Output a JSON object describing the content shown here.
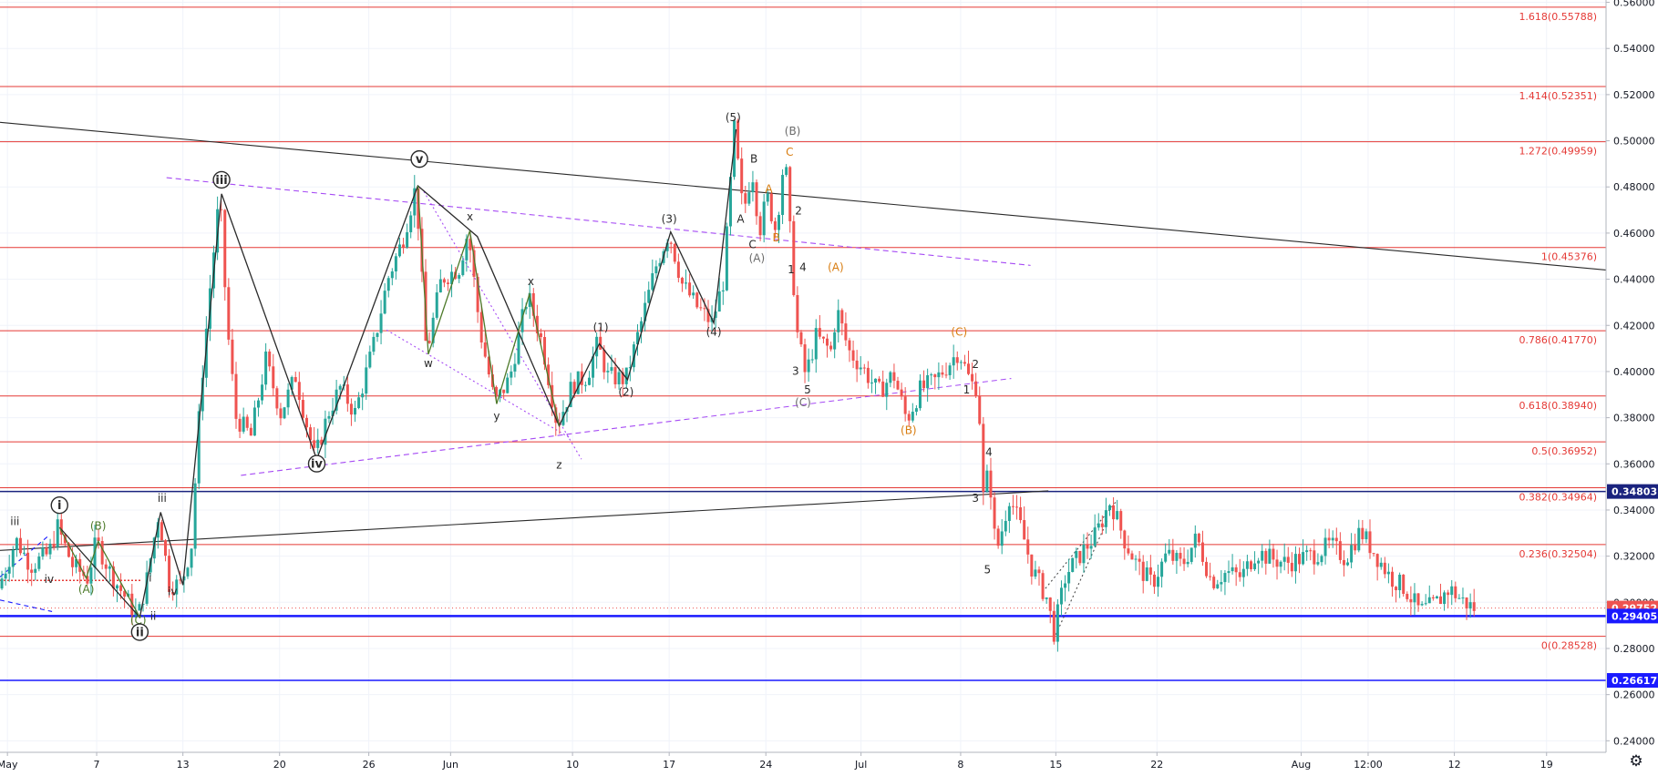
{
  "chart_data": {
    "type": "candlestick",
    "ylim": [
      0.235,
      0.561
    ],
    "xlim": [
      0,
      108
    ],
    "grid": true,
    "colors": {
      "up": "#26a69a",
      "down": "#ef5350",
      "fib_line": "#e53935",
      "blue_line": "#1a1aff",
      "navy_line": "#1a237e",
      "trend_line": "#2a2a2a",
      "channel": "#a64bf4",
      "wave_orange": "#d87c0f",
      "wave_gray": "#6b6b6b",
      "wave_green": "#4d7a2a",
      "last_price": "#ef5350"
    },
    "y_ticks": [
      {
        "value": 0.24,
        "label": "0.24000"
      },
      {
        "value": 0.26,
        "label": "0.26000"
      },
      {
        "value": 0.28,
        "label": "0.28000"
      },
      {
        "value": 0.3,
        "label": "0.30000"
      },
      {
        "value": 0.32,
        "label": "0.32000"
      },
      {
        "value": 0.34,
        "label": "0.34000"
      },
      {
        "value": 0.36,
        "label": "0.36000"
      },
      {
        "value": 0.38,
        "label": "0.38000"
      },
      {
        "value": 0.4,
        "label": "0.40000"
      },
      {
        "value": 0.42,
        "label": "0.42000"
      },
      {
        "value": 0.44,
        "label": "0.44000"
      },
      {
        "value": 0.46,
        "label": "0.46000"
      },
      {
        "value": 0.48,
        "label": "0.48000"
      },
      {
        "value": 0.5,
        "label": "0.50000"
      },
      {
        "value": 0.52,
        "label": "0.52000"
      },
      {
        "value": 0.54,
        "label": "0.54000"
      },
      {
        "value": 0.56,
        "label": "0.56000"
      }
    ],
    "x_ticks": [
      {
        "t": 0.5,
        "label": "May"
      },
      {
        "t": 6.5,
        "label": "7"
      },
      {
        "t": 12.3,
        "label": "13"
      },
      {
        "t": 18.8,
        "label": "20"
      },
      {
        "t": 24.8,
        "label": "26"
      },
      {
        "t": 30.3,
        "label": "Jun"
      },
      {
        "t": 38.5,
        "label": "10"
      },
      {
        "t": 45.0,
        "label": "17"
      },
      {
        "t": 51.5,
        "label": "24"
      },
      {
        "t": 57.9,
        "label": "Jul"
      },
      {
        "t": 64.6,
        "label": "8"
      },
      {
        "t": 71.0,
        "label": "15"
      },
      {
        "t": 77.8,
        "label": "22"
      },
      {
        "t": 87.5,
        "label": "Aug"
      },
      {
        "t": 92.0,
        "label": "12:00"
      },
      {
        "t": 97.8,
        "label": "12"
      },
      {
        "t": 104.0,
        "label": "19"
      }
    ],
    "fib_levels": [
      {
        "ratio": "1.618",
        "price": 0.55788,
        "label": "1.618(0.55788)"
      },
      {
        "ratio": "1.414",
        "price": 0.52351,
        "label": "1.414(0.52351)"
      },
      {
        "ratio": "1.272",
        "price": 0.49959,
        "label": "1.272(0.49959)"
      },
      {
        "ratio": "1",
        "price": 0.45376,
        "label": "1(0.45376)"
      },
      {
        "ratio": "0.786",
        "price": 0.4177,
        "label": "0.786(0.41770)"
      },
      {
        "ratio": "0.618",
        "price": 0.3894,
        "label": "0.618(0.38940)"
      },
      {
        "ratio": "0.5",
        "price": 0.36952,
        "label": "0.5(0.36952)"
      },
      {
        "ratio": "0.382",
        "price": 0.34964,
        "label": "0.382(0.34964)"
      },
      {
        "ratio": "0.236",
        "price": 0.32504,
        "label": "0.236(0.32504)"
      },
      {
        "ratio": "0",
        "price": 0.28528,
        "label": "0(0.28528)"
      }
    ],
    "price_badges": [
      {
        "price": 0.34803,
        "label": "0.34803",
        "color": "#1a237e"
      },
      {
        "price": 0.29752,
        "label": "0.29752",
        "color": "#ef5350"
      },
      {
        "price": 0.29405,
        "label": "0.29405",
        "color": "#1a1aff"
      },
      {
        "price": 0.26617,
        "label": "0.26617",
        "color": "#1a1aff"
      }
    ],
    "horizontal_lines": [
      {
        "price": 0.34803,
        "color": "#1a237e",
        "width": 1.5
      },
      {
        "price": 0.29405,
        "color": "#1a1aff",
        "width": 2.5
      },
      {
        "price": 0.26617,
        "color": "#1a1aff",
        "width": 1.5
      }
    ],
    "trend_lines": [
      {
        "t1": 0,
        "p1": 0.508,
        "t2": 108,
        "p2": 0.444,
        "color": "#2a2a2a",
        "dash": ""
      },
      {
        "t1": 0,
        "p1": 0.3225,
        "t2": 70.5,
        "p2": 0.3483,
        "color": "#2a2a2a",
        "dash": ""
      },
      {
        "t1": 11.2,
        "p1": 0.484,
        "t2": 69.3,
        "p2": 0.446,
        "color": "#a64bf4",
        "dash": "6,4"
      },
      {
        "t1": 16.2,
        "p1": 0.355,
        "t2": 68.0,
        "p2": 0.397,
        "color": "#a64bf4",
        "dash": "6,4"
      },
      {
        "t1": 28.5,
        "p1": 0.478,
        "t2": 39.1,
        "p2": 0.362,
        "color": "#a64bf4",
        "dash": "2,3"
      },
      {
        "t1": 26.0,
        "p1": 0.418,
        "t2": 38.4,
        "p2": 0.371,
        "color": "#a64bf4",
        "dash": "2,3"
      },
      {
        "t1": 71.0,
        "p1": 0.286,
        "t2": 74.5,
        "p2": 0.336,
        "color": "#4a4a4a",
        "dash": "2,3"
      },
      {
        "t1": 70.3,
        "p1": 0.306,
        "t2": 75.1,
        "p2": 0.344,
        "color": "#4a4a4a",
        "dash": "2,3"
      },
      {
        "t1": 0,
        "p1": 0.301,
        "t2": 3.5,
        "p2": 0.296,
        "color": "#1a1aff",
        "dash": "5,4"
      },
      {
        "t1": 0,
        "p1": 0.311,
        "t2": 3.2,
        "p2": 0.3285,
        "color": "#1a1aff",
        "dash": "5,4"
      }
    ],
    "red_dotted_line": {
      "t1": 0,
      "t2": 9.5,
      "p": 0.3095
    },
    "wave_paths": [
      {
        "color": "#2a2a2a",
        "points": [
          [
            4,
            0.3325
          ],
          [
            9.4,
            0.2935
          ],
          [
            10.8,
            0.339
          ],
          [
            12.3,
            0.3075
          ],
          [
            14.9,
            0.477
          ],
          [
            21.3,
            0.362
          ],
          [
            28.1,
            0.4805
          ],
          [
            32.1,
            0.4585
          ],
          [
            37.6,
            0.3765
          ],
          [
            40.3,
            0.412
          ],
          [
            42.2,
            0.3965
          ],
          [
            45.1,
            0.4605
          ],
          [
            48.0,
            0.421
          ],
          [
            49.5,
            0.505
          ]
        ]
      },
      {
        "color": "#4d7a2a",
        "points": [
          [
            4,
            0.3325
          ],
          [
            5.8,
            0.3105
          ],
          [
            6.6,
            0.3265
          ],
          [
            9.4,
            0.2935
          ]
        ]
      },
      {
        "color": "#4d7a2a",
        "points": [
          [
            28.1,
            0.4805
          ],
          [
            28.8,
            0.4075
          ],
          [
            31.6,
            0.461
          ],
          [
            33.4,
            0.386
          ],
          [
            35.6,
            0.4335
          ],
          [
            37.6,
            0.3765
          ]
        ]
      }
    ],
    "wave_labels": [
      {
        "t": 1.0,
        "p": 0.3335,
        "text": "iii",
        "color": "#2a2a2a",
        "circled": false
      },
      {
        "t": 4.0,
        "p": 0.3405,
        "text": "i",
        "color": "#2a2a2a",
        "circled": true
      },
      {
        "t": 3.3,
        "p": 0.3085,
        "text": "iv",
        "color": "#2a2a2a",
        "circled": false
      },
      {
        "t": 6.6,
        "p": 0.3315,
        "text": "(B)",
        "color": "#4d7a2a",
        "circled": false
      },
      {
        "t": 5.8,
        "p": 0.304,
        "text": "(A)",
        "color": "#4d7a2a",
        "circled": false
      },
      {
        "t": 9.3,
        "p": 0.2907,
        "text": "(C)",
        "color": "#4d7a2a",
        "circled": false
      },
      {
        "t": 9.4,
        "p": 0.2855,
        "text": "ii",
        "color": "#2a2a2a",
        "circled": true
      },
      {
        "t": 10.1,
        "p": 0.309,
        "text": "i",
        "color": "#2a2a2a",
        "circled": false
      },
      {
        "t": 10.3,
        "p": 0.2925,
        "text": "ii",
        "color": "#2a2a2a",
        "circled": false
      },
      {
        "t": 10.9,
        "p": 0.3435,
        "text": "iii",
        "color": "#2a2a2a",
        "circled": false
      },
      {
        "t": 11.6,
        "p": 0.303,
        "text": "iv",
        "color": "#2a2a2a",
        "circled": false
      },
      {
        "t": 14.9,
        "p": 0.4815,
        "text": "iii",
        "color": "#2a2a2a",
        "circled": true
      },
      {
        "t": 21.3,
        "p": 0.3585,
        "text": "iv",
        "color": "#2a2a2a",
        "circled": true
      },
      {
        "t": 28.2,
        "p": 0.4905,
        "text": "v",
        "color": "#2a2a2a",
        "circled": true
      },
      {
        "t": 28.8,
        "p": 0.402,
        "text": "w",
        "color": "#2a2a2a",
        "circled": false
      },
      {
        "t": 31.6,
        "p": 0.4655,
        "text": "x",
        "color": "#2a2a2a",
        "circled": false
      },
      {
        "t": 33.4,
        "p": 0.379,
        "text": "y",
        "color": "#2a2a2a",
        "circled": false
      },
      {
        "t": 35.7,
        "p": 0.4375,
        "text": "x",
        "color": "#2a2a2a",
        "circled": false
      },
      {
        "t": 37.6,
        "p": 0.358,
        "text": "z",
        "color": "#2a2a2a",
        "circled": false
      },
      {
        "t": 40.4,
        "p": 0.4175,
        "text": "(1)",
        "color": "#2a2a2a",
        "circled": false
      },
      {
        "t": 42.1,
        "p": 0.3895,
        "text": "(2)",
        "color": "#2a2a2a",
        "circled": false
      },
      {
        "t": 45.0,
        "p": 0.4645,
        "text": "(3)",
        "color": "#2a2a2a",
        "circled": false
      },
      {
        "t": 48.0,
        "p": 0.4155,
        "text": "(4)",
        "color": "#2a2a2a",
        "circled": false
      },
      {
        "t": 49.3,
        "p": 0.5085,
        "text": "(5)",
        "color": "#2a2a2a",
        "circled": false
      },
      {
        "t": 49.8,
        "p": 0.4645,
        "text": "A",
        "color": "#2a2a2a",
        "circled": false
      },
      {
        "t": 50.7,
        "p": 0.4905,
        "text": "B",
        "color": "#2a2a2a",
        "circled": false
      },
      {
        "t": 50.6,
        "p": 0.4535,
        "text": "C",
        "color": "#2a2a2a",
        "circled": false
      },
      {
        "t": 50.9,
        "p": 0.4475,
        "text": "(A)",
        "color": "#6b6b6b",
        "circled": false
      },
      {
        "t": 51.7,
        "p": 0.4775,
        "text": "A",
        "color": "#d87c0f",
        "circled": false
      },
      {
        "t": 52.2,
        "p": 0.4565,
        "text": "B",
        "color": "#d87c0f",
        "circled": false
      },
      {
        "t": 53.1,
        "p": 0.4935,
        "text": "C",
        "color": "#d87c0f",
        "circled": false
      },
      {
        "t": 53.3,
        "p": 0.5025,
        "text": "(B)",
        "color": "#6b6b6b",
        "circled": false
      },
      {
        "t": 53.7,
        "p": 0.468,
        "text": "2",
        "color": "#2a2a2a",
        "circled": false
      },
      {
        "t": 53.2,
        "p": 0.4425,
        "text": "1",
        "color": "#2a2a2a",
        "circled": false
      },
      {
        "t": 54.0,
        "p": 0.4435,
        "text": "4",
        "color": "#2a2a2a",
        "circled": false
      },
      {
        "t": 56.2,
        "p": 0.4435,
        "text": "(A)",
        "color": "#d87c0f",
        "circled": false
      },
      {
        "t": 53.5,
        "p": 0.3985,
        "text": "3",
        "color": "#2a2a2a",
        "circled": false
      },
      {
        "t": 54.3,
        "p": 0.3905,
        "text": "5",
        "color": "#2a2a2a",
        "circled": false
      },
      {
        "t": 54.0,
        "p": 0.385,
        "text": "(C)",
        "color": "#6b6b6b",
        "circled": false
      },
      {
        "t": 61.1,
        "p": 0.373,
        "text": "(B)",
        "color": "#d87c0f",
        "circled": false
      },
      {
        "t": 64.5,
        "p": 0.4155,
        "text": "(C)",
        "color": "#d87c0f",
        "circled": false
      },
      {
        "t": 65.6,
        "p": 0.4015,
        "text": "2",
        "color": "#2a2a2a",
        "circled": false
      },
      {
        "t": 65.0,
        "p": 0.3905,
        "text": "1",
        "color": "#2a2a2a",
        "circled": false
      },
      {
        "t": 66.5,
        "p": 0.3635,
        "text": "4",
        "color": "#2a2a2a",
        "circled": false
      },
      {
        "t": 65.6,
        "p": 0.3435,
        "text": "3",
        "color": "#2a2a2a",
        "circled": false
      },
      {
        "t": 66.4,
        "p": 0.3125,
        "text": "5",
        "color": "#2a2a2a",
        "circled": false
      }
    ],
    "price_path": [
      [
        0,
        0.306
      ],
      [
        1.2,
        0.327
      ],
      [
        2.2,
        0.316
      ],
      [
        3.4,
        0.321
      ],
      [
        4.0,
        0.3325
      ],
      [
        5.0,
        0.316
      ],
      [
        6.0,
        0.3105
      ],
      [
        6.6,
        0.3265
      ],
      [
        7.6,
        0.312
      ],
      [
        9.4,
        0.2935
      ],
      [
        10.0,
        0.31
      ],
      [
        10.8,
        0.339
      ],
      [
        11.5,
        0.308
      ],
      [
        12.3,
        0.3075
      ],
      [
        13.0,
        0.325
      ],
      [
        13.6,
        0.39
      ],
      [
        14.3,
        0.44
      ],
      [
        14.9,
        0.477
      ],
      [
        15.4,
        0.42
      ],
      [
        16.0,
        0.38
      ],
      [
        17.0,
        0.372
      ],
      [
        18.0,
        0.405
      ],
      [
        19.0,
        0.382
      ],
      [
        20.0,
        0.398
      ],
      [
        21.3,
        0.362
      ],
      [
        22.2,
        0.382
      ],
      [
        23.0,
        0.393
      ],
      [
        24.0,
        0.382
      ],
      [
        25.2,
        0.41
      ],
      [
        26.2,
        0.44
      ],
      [
        27.2,
        0.457
      ],
      [
        28.1,
        0.4805
      ],
      [
        28.8,
        0.4075
      ],
      [
        29.8,
        0.44
      ],
      [
        31.0,
        0.445
      ],
      [
        31.6,
        0.461
      ],
      [
        32.4,
        0.418
      ],
      [
        33.4,
        0.386
      ],
      [
        34.4,
        0.397
      ],
      [
        35.6,
        0.4335
      ],
      [
        36.6,
        0.412
      ],
      [
        37.6,
        0.3765
      ],
      [
        38.6,
        0.394
      ],
      [
        39.6,
        0.398
      ],
      [
        40.3,
        0.412
      ],
      [
        41.0,
        0.398
      ],
      [
        42.2,
        0.3965
      ],
      [
        43.2,
        0.42
      ],
      [
        44.2,
        0.445
      ],
      [
        45.1,
        0.4605
      ],
      [
        46.0,
        0.438
      ],
      [
        47.0,
        0.428
      ],
      [
        48.0,
        0.421
      ],
      [
        48.8,
        0.44
      ],
      [
        49.5,
        0.505
      ],
      [
        50.1,
        0.468
      ],
      [
        50.7,
        0.488
      ],
      [
        51.2,
        0.461
      ],
      [
        51.7,
        0.476
      ],
      [
        52.3,
        0.461
      ],
      [
        52.9,
        0.495
      ],
      [
        53.3,
        0.456
      ],
      [
        53.7,
        0.418
      ],
      [
        54.3,
        0.398
      ],
      [
        55.0,
        0.415
      ],
      [
        56.0,
        0.409
      ],
      [
        56.4,
        0.427
      ],
      [
        57.2,
        0.409
      ],
      [
        58.2,
        0.401
      ],
      [
        59.2,
        0.391
      ],
      [
        60.2,
        0.399
      ],
      [
        61.1,
        0.379
      ],
      [
        62.0,
        0.392
      ],
      [
        63.0,
        0.396
      ],
      [
        64.0,
        0.404
      ],
      [
        64.6,
        0.409
      ],
      [
        65.4,
        0.395
      ],
      [
        65.9,
        0.393
      ],
      [
        66.3,
        0.339
      ],
      [
        66.6,
        0.361
      ],
      [
        67.1,
        0.321
      ],
      [
        67.6,
        0.334
      ],
      [
        68.0,
        0.346
      ],
      [
        68.8,
        0.332
      ],
      [
        69.5,
        0.315
      ],
      [
        70.5,
        0.302
      ],
      [
        71.0,
        0.287
      ],
      [
        71.8,
        0.312
      ],
      [
        72.8,
        0.321
      ],
      [
        73.8,
        0.329
      ],
      [
        74.8,
        0.344
      ],
      [
        75.8,
        0.326
      ],
      [
        76.6,
        0.316
      ],
      [
        77.6,
        0.308
      ],
      [
        78.6,
        0.321
      ],
      [
        79.6,
        0.316
      ],
      [
        80.6,
        0.328
      ],
      [
        81.6,
        0.309
      ],
      [
        82.6,
        0.313
      ],
      [
        83.6,
        0.311
      ],
      [
        84.6,
        0.322
      ],
      [
        85.6,
        0.319
      ],
      [
        86.6,
        0.317
      ],
      [
        87.6,
        0.319
      ],
      [
        88.6,
        0.321
      ],
      [
        89.6,
        0.325
      ],
      [
        90.6,
        0.319
      ],
      [
        91.6,
        0.331
      ],
      [
        92.6,
        0.321
      ],
      [
        93.6,
        0.311
      ],
      [
        94.6,
        0.306
      ],
      [
        95.6,
        0.296
      ],
      [
        96.6,
        0.299
      ],
      [
        97.6,
        0.306
      ],
      [
        98.4,
        0.301
      ],
      [
        99.2,
        0.2975
      ]
    ]
  },
  "ui": {
    "settings_icon": "gear-icon",
    "settings_glyph": "⚙"
  }
}
